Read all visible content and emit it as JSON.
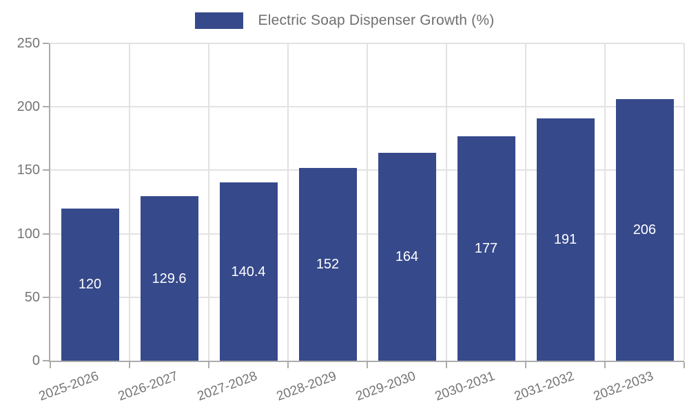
{
  "chart_data": {
    "type": "bar",
    "title": "",
    "legend": {
      "label": "Electric Soap Dispenser Growth (%)",
      "position": "top-center"
    },
    "categories": [
      "2025-2026",
      "2026-2027",
      "2027-2028",
      "2028-2029",
      "2029-2030",
      "2030-2031",
      "2031-2032",
      "2032-2033"
    ],
    "values": [
      120,
      129.6,
      140.4,
      152,
      164,
      177,
      191,
      206
    ],
    "value_labels": [
      "120",
      "129.6",
      "140.4",
      "152",
      "164",
      "177",
      "191",
      "206"
    ],
    "xlabel": "",
    "ylabel": "",
    "ylim": [
      0,
      250
    ],
    "yticks": [
      0,
      50,
      100,
      150,
      200,
      250
    ],
    "grid": true,
    "x_tick_rotation_deg": -20
  },
  "colors": {
    "bar": "#36498B",
    "grid": "#E2E2E2",
    "axis": "#ABABAB",
    "tick_label": "#757575",
    "legend_text": "#6F6F6F",
    "value_label": "#FFFFFF",
    "background": "#FFFFFF"
  }
}
